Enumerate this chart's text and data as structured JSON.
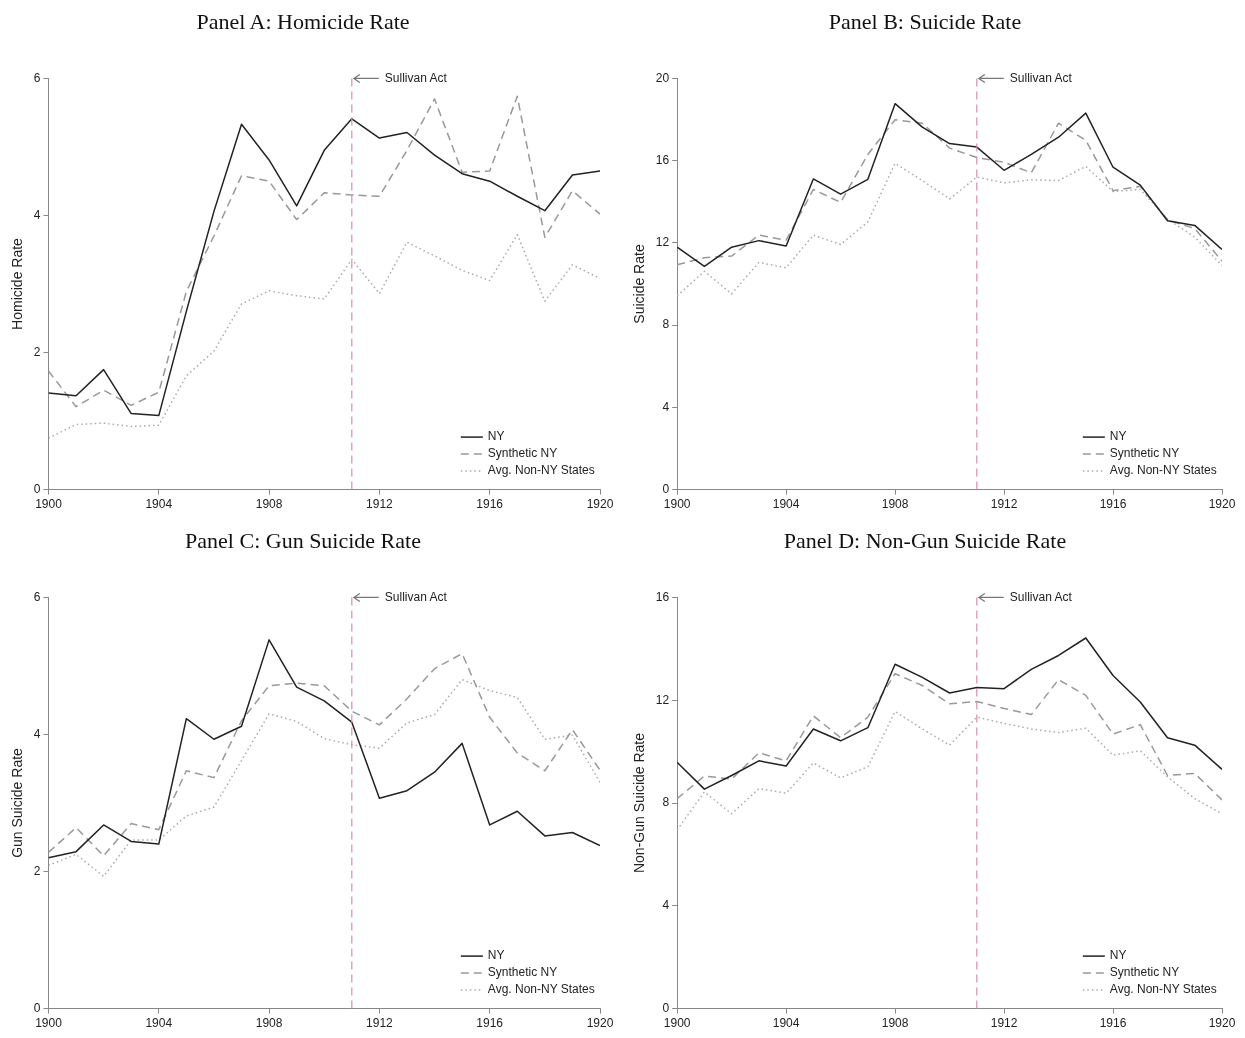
{
  "chart_data": [
    {
      "type": "line",
      "title": "Panel A: Homicide Rate",
      "ylabel": "Homicide Rate",
      "x": [
        1900,
        1901,
        1902,
        1903,
        1904,
        1905,
        1906,
        1907,
        1908,
        1909,
        1910,
        1911,
        1912,
        1913,
        1914,
        1915,
        1916,
        1917,
        1918,
        1919,
        1920
      ],
      "xlim": [
        1900,
        1920
      ],
      "xticks": [
        1900,
        1904,
        1908,
        1912,
        1916,
        1920
      ],
      "ylim": [
        0,
        6
      ],
      "yticks": [
        0,
        2,
        4,
        6
      ],
      "grid": false,
      "legend": "bottom right",
      "ref_lines": [
        {
          "axis": "x",
          "value": 1911,
          "label": "Sullivan Act",
          "color": "#d98caa",
          "line_style": "dashed"
        }
      ],
      "series": [
        {
          "name": "NY",
          "color": "#222222",
          "line_style": "solid",
          "values": [
            1.41,
            1.37,
            1.75,
            1.11,
            1.08,
            2.6,
            4.06,
            5.33,
            4.81,
            4.14,
            4.95,
            5.41,
            5.13,
            5.21,
            4.88,
            4.61,
            4.5,
            4.28,
            4.07,
            4.59,
            4.65
          ]
        },
        {
          "name": "Synthetic NY",
          "color": "#999999",
          "line_style": "dashed",
          "values": [
            1.73,
            1.21,
            1.45,
            1.23,
            1.42,
            2.89,
            3.7,
            4.58,
            4.5,
            3.94,
            4.33,
            4.3,
            4.28,
            4.95,
            5.7,
            4.63,
            4.65,
            5.74,
            3.68,
            4.36,
            4.02
          ]
        },
        {
          "name": "Avg. Non-NY States",
          "color": "#aaaaaa",
          "line_style": "dotted",
          "values": [
            0.75,
            0.95,
            0.97,
            0.92,
            0.94,
            1.66,
            2.02,
            2.71,
            2.9,
            2.83,
            2.78,
            3.36,
            2.86,
            3.61,
            3.41,
            3.2,
            3.05,
            3.72,
            2.75,
            3.28,
            3.08
          ]
        }
      ]
    },
    {
      "type": "line",
      "title": "Panel B: Suicide Rate",
      "ylabel": "Suicide Rate",
      "x": [
        1900,
        1901,
        1902,
        1903,
        1904,
        1905,
        1906,
        1907,
        1908,
        1909,
        1910,
        1911,
        1912,
        1913,
        1914,
        1915,
        1916,
        1917,
        1918,
        1919,
        1920
      ],
      "xlim": [
        1900,
        1920
      ],
      "xticks": [
        1900,
        1904,
        1908,
        1912,
        1916,
        1920
      ],
      "ylim": [
        0,
        20
      ],
      "yticks": [
        0,
        4,
        8,
        12,
        16,
        20
      ],
      "grid": false,
      "legend": "bottom right",
      "ref_lines": [
        {
          "axis": "x",
          "value": 1911,
          "label": "Sullivan Act",
          "color": "#d98caa",
          "line_style": "dashed"
        }
      ],
      "series": [
        {
          "name": "NY",
          "color": "#222222",
          "line_style": "solid",
          "values": [
            11.79,
            10.86,
            11.79,
            12.11,
            11.85,
            15.11,
            14.37,
            15.09,
            18.77,
            17.63,
            16.83,
            16.66,
            15.53,
            16.3,
            17.14,
            18.31,
            15.68,
            14.81,
            13.08,
            12.85,
            11.68
          ]
        },
        {
          "name": "Synthetic NY",
          "color": "#999999",
          "line_style": "dashed",
          "values": [
            10.94,
            11.28,
            11.36,
            12.38,
            12.13,
            14.6,
            13.97,
            16.3,
            17.99,
            17.82,
            16.61,
            16.15,
            15.92,
            15.41,
            17.82,
            16.99,
            14.54,
            14.75,
            13.12,
            12.7,
            11.11
          ]
        },
        {
          "name": "Avg. Non-NY States",
          "color": "#aaaaaa",
          "line_style": "dotted",
          "values": [
            9.42,
            10.62,
            9.52,
            11.05,
            10.79,
            12.38,
            11.92,
            13.02,
            15.87,
            15.03,
            14.14,
            15.2,
            14.92,
            15.07,
            15.03,
            15.72,
            14.5,
            14.6,
            13.16,
            12.28,
            10.9
          ]
        }
      ]
    },
    {
      "type": "line",
      "title": "Panel C: Gun Suicide Rate",
      "ylabel": "Gun Suicide Rate",
      "x": [
        1900,
        1901,
        1902,
        1903,
        1904,
        1905,
        1906,
        1907,
        1908,
        1909,
        1910,
        1911,
        1912,
        1913,
        1914,
        1915,
        1916,
        1917,
        1918,
        1919,
        1920
      ],
      "xlim": [
        1900,
        1920
      ],
      "xticks": [
        1900,
        1904,
        1908,
        1912,
        1916,
        1920
      ],
      "ylim": [
        0,
        6
      ],
      "yticks": [
        0,
        2,
        4,
        6
      ],
      "grid": false,
      "legend": "bottom right",
      "ref_lines": [
        {
          "axis": "x",
          "value": 1911,
          "label": "Sullivan Act",
          "color": "#d98caa",
          "line_style": "dashed"
        }
      ],
      "series": [
        {
          "name": "NY",
          "color": "#222222",
          "line_style": "solid",
          "values": [
            2.2,
            2.29,
            2.68,
            2.44,
            2.4,
            4.23,
            3.93,
            4.12,
            5.38,
            4.69,
            4.49,
            4.18,
            3.07,
            3.18,
            3.45,
            3.87,
            2.68,
            2.88,
            2.52,
            2.57,
            2.38
          ]
        },
        {
          "name": "Synthetic NY",
          "color": "#999999",
          "line_style": "dashed",
          "values": [
            2.28,
            2.64,
            2.23,
            2.7,
            2.61,
            3.47,
            3.37,
            4.2,
            4.71,
            4.75,
            4.71,
            4.34,
            4.14,
            4.52,
            4.96,
            5.18,
            4.25,
            3.73,
            3.47,
            4.07,
            3.48
          ]
        },
        {
          "name": "Avg. Non-NY States",
          "color": "#aaaaaa",
          "line_style": "dotted",
          "values": [
            2.09,
            2.25,
            1.93,
            2.46,
            2.46,
            2.81,
            2.94,
            3.62,
            4.3,
            4.19,
            3.94,
            3.85,
            3.8,
            4.17,
            4.29,
            4.8,
            4.64,
            4.54,
            3.93,
            3.99,
            3.3
          ]
        }
      ]
    },
    {
      "type": "line",
      "title": "Panel D: Non-Gun Suicide Rate",
      "ylabel": "Non-Gun Suicide Rate",
      "x": [
        1900,
        1901,
        1902,
        1903,
        1904,
        1905,
        1906,
        1907,
        1908,
        1909,
        1910,
        1911,
        1912,
        1913,
        1914,
        1915,
        1916,
        1917,
        1918,
        1919,
        1920
      ],
      "xlim": [
        1900,
        1920
      ],
      "xticks": [
        1900,
        1904,
        1908,
        1912,
        1916,
        1920
      ],
      "ylim": [
        0,
        16
      ],
      "yticks": [
        0,
        4,
        8,
        12,
        16
      ],
      "grid": false,
      "legend": "bottom right",
      "ref_lines": [
        {
          "axis": "x",
          "value": 1911,
          "label": "Sullivan Act",
          "color": "#d98caa",
          "line_style": "dashed"
        }
      ],
      "series": [
        {
          "name": "NY",
          "color": "#222222",
          "line_style": "solid",
          "values": [
            9.58,
            8.54,
            9.07,
            9.64,
            9.44,
            10.88,
            10.42,
            10.93,
            13.4,
            12.89,
            12.28,
            12.49,
            12.45,
            13.2,
            13.74,
            14.42,
            12.96,
            11.93,
            10.54,
            10.25,
            9.31
          ]
        },
        {
          "name": "Synthetic NY",
          "color": "#999999",
          "line_style": "dashed",
          "values": [
            8.17,
            9.05,
            8.93,
            9.95,
            9.64,
            11.39,
            10.54,
            11.34,
            13.03,
            12.57,
            11.86,
            11.95,
            11.68,
            11.44,
            12.8,
            12.19,
            10.68,
            11.05,
            9.07,
            9.15,
            8.12
          ]
        },
        {
          "name": "Avg. Non-NY States",
          "color": "#aaaaaa",
          "line_style": "dotted",
          "values": [
            6.95,
            8.43,
            7.58,
            8.56,
            8.38,
            9.56,
            8.98,
            9.41,
            11.56,
            10.88,
            10.25,
            11.34,
            11.1,
            10.88,
            10.74,
            10.91,
            9.86,
            10.03,
            9.02,
            8.17,
            7.58
          ]
        }
      ]
    }
  ]
}
